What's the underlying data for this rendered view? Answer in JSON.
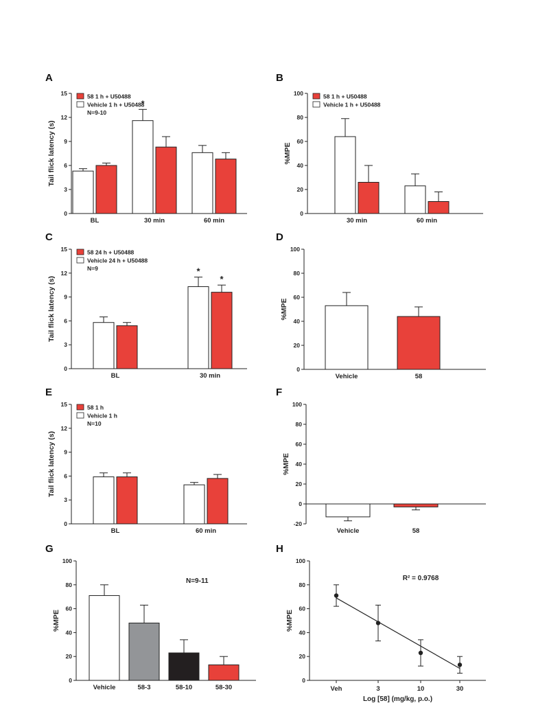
{
  "colors": {
    "red": "#e8413a",
    "white": "#ffffff",
    "gray": "#939598",
    "black": "#231f20"
  },
  "chart_data": [
    {
      "panel": "A",
      "type": "bar",
      "ylabel": "Tail flick latency (s)",
      "ylim": [
        0,
        15
      ],
      "yticks": [
        0,
        3,
        6,
        9,
        12,
        15
      ],
      "categories": [
        "BL",
        "30 min",
        "60 min"
      ],
      "series": [
        {
          "name": "Vehicle 1 h + U50488",
          "color": "white",
          "values": [
            5.3,
            11.6,
            7.6
          ],
          "errors": [
            0.3,
            1.4,
            0.9
          ]
        },
        {
          "name": "58 1 h + U50488",
          "color": "red",
          "values": [
            6.0,
            8.3,
            6.8
          ],
          "errors": [
            0.3,
            1.3,
            0.8
          ]
        }
      ],
      "legend_order": [
        1,
        0
      ],
      "note": "N=9-10",
      "stars": [
        {
          "series": 0,
          "category": 1
        }
      ]
    },
    {
      "panel": "B",
      "type": "bar",
      "ylabel": "%MPE",
      "ylim": [
        0,
        100
      ],
      "yticks": [
        0,
        20,
        40,
        60,
        80,
        100
      ],
      "categories": [
        "30 min",
        "60 min"
      ],
      "series": [
        {
          "name": "Vehicle 1 h + U50488",
          "color": "white",
          "values": [
            64,
            23
          ],
          "errors": [
            15,
            10
          ]
        },
        {
          "name": "58 1 h + U50488",
          "color": "red",
          "values": [
            26,
            10
          ],
          "errors": [
            14,
            8
          ]
        }
      ],
      "legend_order": [
        1,
        0
      ]
    },
    {
      "panel": "C",
      "type": "bar",
      "ylabel": "Tail flick latency (s)",
      "ylim": [
        0,
        15
      ],
      "yticks": [
        0,
        3,
        6,
        9,
        12,
        15
      ],
      "categories": [
        "BL",
        "30 min"
      ],
      "series": [
        {
          "name": "Vehicle 24 h + U50488",
          "color": "white",
          "values": [
            5.8,
            10.3
          ],
          "errors": [
            0.7,
            1.2
          ]
        },
        {
          "name": "58 24 h + U50488",
          "color": "red",
          "values": [
            5.4,
            9.6
          ],
          "errors": [
            0.4,
            0.9
          ]
        }
      ],
      "legend_order": [
        1,
        0
      ],
      "note": "N=9",
      "stars": [
        {
          "series": 0,
          "category": 1
        },
        {
          "series": 1,
          "category": 1
        }
      ]
    },
    {
      "panel": "D",
      "type": "bar",
      "ylabel": "%MPE",
      "ylim": [
        0,
        100
      ],
      "yticks": [
        0,
        20,
        40,
        60,
        80,
        100
      ],
      "categories": [
        "Vehicle",
        "58"
      ],
      "bars": [
        {
          "category": "Vehicle",
          "color": "white",
          "value": 53,
          "error": 11
        },
        {
          "category": "58",
          "color": "red",
          "value": 44,
          "error": 8
        }
      ]
    },
    {
      "panel": "E",
      "type": "bar",
      "ylabel": "Tail flick latency (s)",
      "ylim": [
        0,
        15
      ],
      "yticks": [
        0,
        3,
        6,
        9,
        12,
        15
      ],
      "categories": [
        "BL",
        "60 min"
      ],
      "series": [
        {
          "name": "Vehicle 1 h",
          "color": "white",
          "values": [
            5.9,
            4.9
          ],
          "errors": [
            0.5,
            0.3
          ]
        },
        {
          "name": "58 1 h",
          "color": "red",
          "values": [
            5.9,
            5.7
          ],
          "errors": [
            0.5,
            0.5
          ]
        }
      ],
      "legend_order": [
        1,
        0
      ],
      "note": "N=10"
    },
    {
      "panel": "F",
      "type": "bar",
      "ylabel": "%MPE",
      "ylim": [
        -20,
        100
      ],
      "yticks": [
        -20,
        0,
        20,
        40,
        60,
        80,
        100
      ],
      "categories": [
        "Vehicle",
        "58"
      ],
      "bars": [
        {
          "category": "Vehicle",
          "color": "white",
          "value": -13,
          "error": 4
        },
        {
          "category": "58",
          "color": "red",
          "value": -3,
          "error": 3
        }
      ]
    },
    {
      "panel": "G",
      "type": "bar",
      "ylabel": "%MPE",
      "ylim": [
        0,
        100
      ],
      "yticks": [
        0,
        20,
        40,
        60,
        80,
        100
      ],
      "categories": [
        "Vehicle",
        "58-3",
        "58-10",
        "58-30"
      ],
      "bars": [
        {
          "category": "Vehicle",
          "color": "white",
          "value": 71,
          "error": 9
        },
        {
          "category": "58-3",
          "color": "gray",
          "value": 48,
          "error": 15
        },
        {
          "category": "58-10",
          "color": "black",
          "value": 23,
          "error": 11
        },
        {
          "category": "58-30",
          "color": "red",
          "value": 13,
          "error": 7
        }
      ],
      "note": "N=9-11"
    },
    {
      "panel": "H",
      "type": "scatter",
      "ylabel": "%MPE",
      "xlabel": "Log [58] (mg/kg, p.o.)",
      "ylim": [
        0,
        100
      ],
      "yticks": [
        0,
        20,
        40,
        60,
        80,
        100
      ],
      "categories": [
        "Veh",
        "3",
        "10",
        "30"
      ],
      "points": [
        {
          "category": "Veh",
          "value": 71,
          "error": 9
        },
        {
          "category": "3",
          "value": 48,
          "error": 15
        },
        {
          "category": "10",
          "value": 23,
          "error": 11
        },
        {
          "category": "30",
          "value": 13,
          "error": 7
        }
      ],
      "fit_line": [
        69,
        10
      ],
      "annotation": "R² = 0.9768"
    }
  ]
}
